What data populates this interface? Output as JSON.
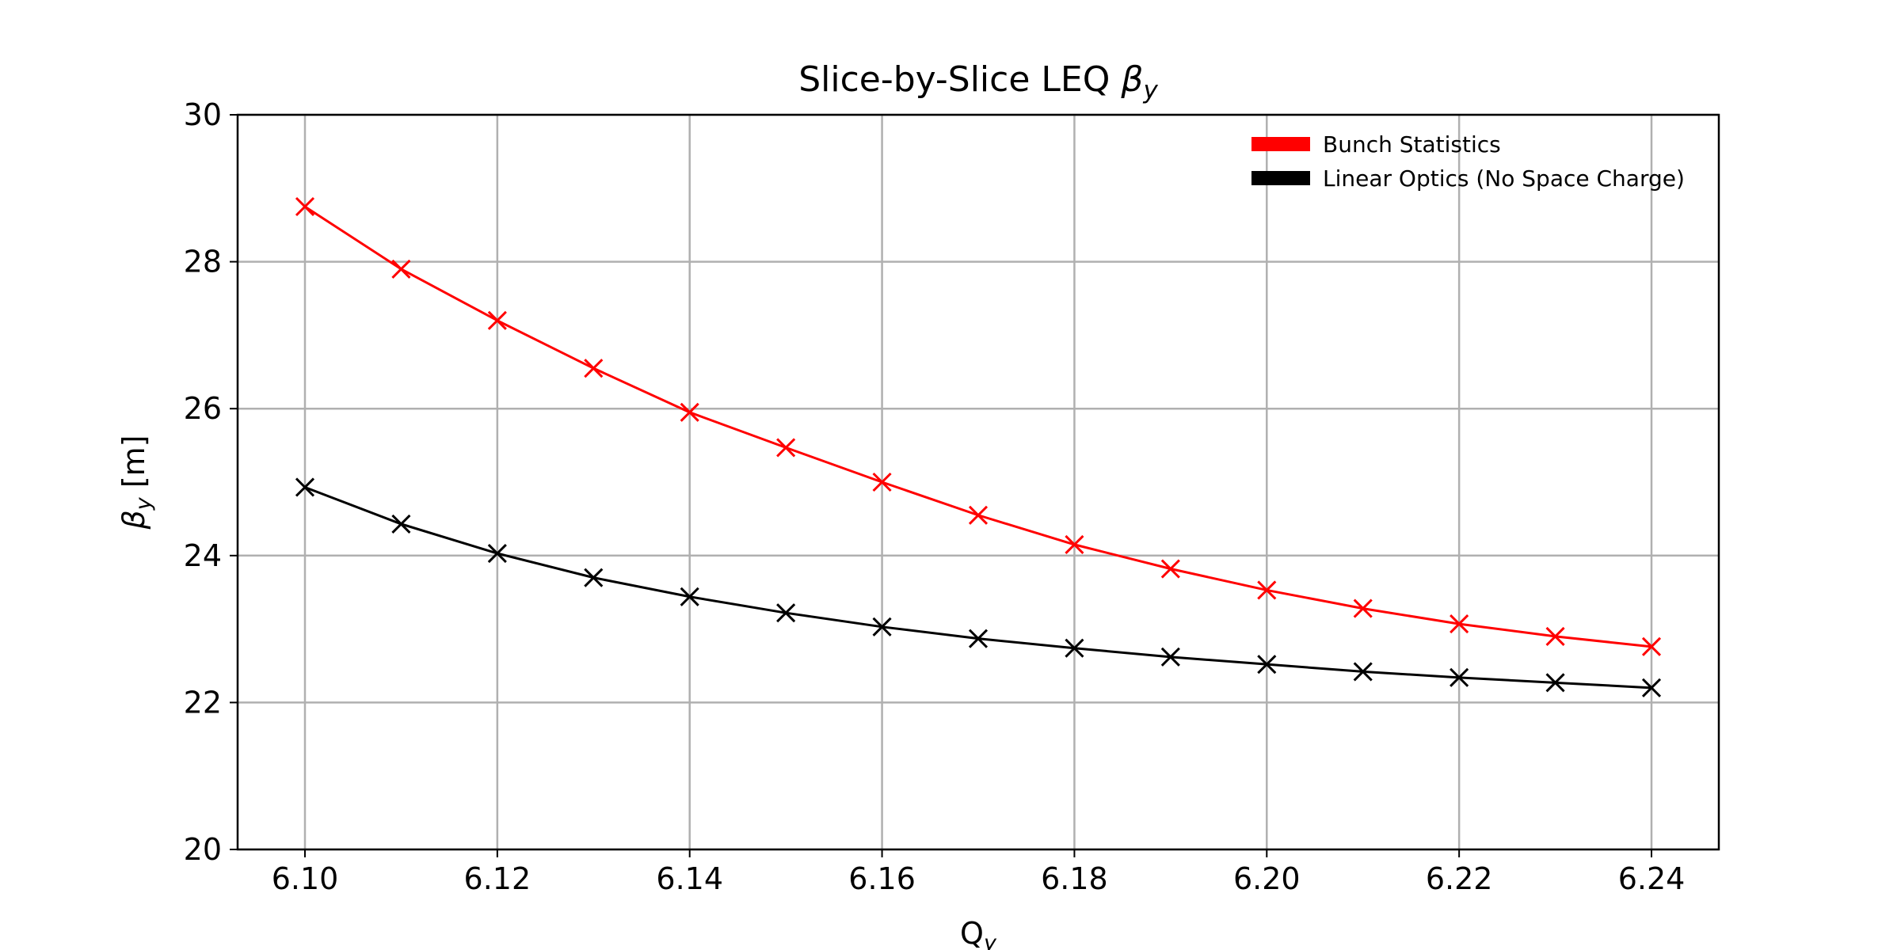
{
  "chart_data": {
    "type": "line",
    "title": "Slice-by-Slice LEQ ",
    "title_symbol": "β",
    "title_subscript": "y",
    "xlabel": "Q",
    "xlabel_subscript": "y",
    "ylabel": "β",
    "ylabel_subscript": "y",
    "ylabel_unit": " [m]",
    "xlim": [
      6.093,
      6.247
    ],
    "ylim": [
      20,
      30
    ],
    "xticks": [
      "6.10",
      "6.12",
      "6.14",
      "6.16",
      "6.18",
      "6.20",
      "6.22",
      "6.24"
    ],
    "yticks": [
      "20",
      "22",
      "24",
      "26",
      "28",
      "30"
    ],
    "grid": true,
    "legend_position": "top-right",
    "x": [
      6.1,
      6.11,
      6.12,
      6.13,
      6.14,
      6.15,
      6.16,
      6.17,
      6.18,
      6.19,
      6.2,
      6.21,
      6.22,
      6.23,
      6.24
    ],
    "series": [
      {
        "name": "Bunch Statistics",
        "color": "#ff0000",
        "marker": "x",
        "values": [
          28.75,
          27.9,
          27.2,
          26.55,
          25.95,
          25.47,
          25.0,
          24.55,
          24.15,
          23.82,
          23.53,
          23.28,
          23.07,
          22.9,
          22.76
        ]
      },
      {
        "name": "Linear Optics (No Space Charge)",
        "color": "#000000",
        "marker": "x",
        "values": [
          24.93,
          24.43,
          24.03,
          23.7,
          23.44,
          23.22,
          23.03,
          22.87,
          22.74,
          22.62,
          22.52,
          22.42,
          22.34,
          22.27,
          22.2
        ]
      }
    ]
  }
}
